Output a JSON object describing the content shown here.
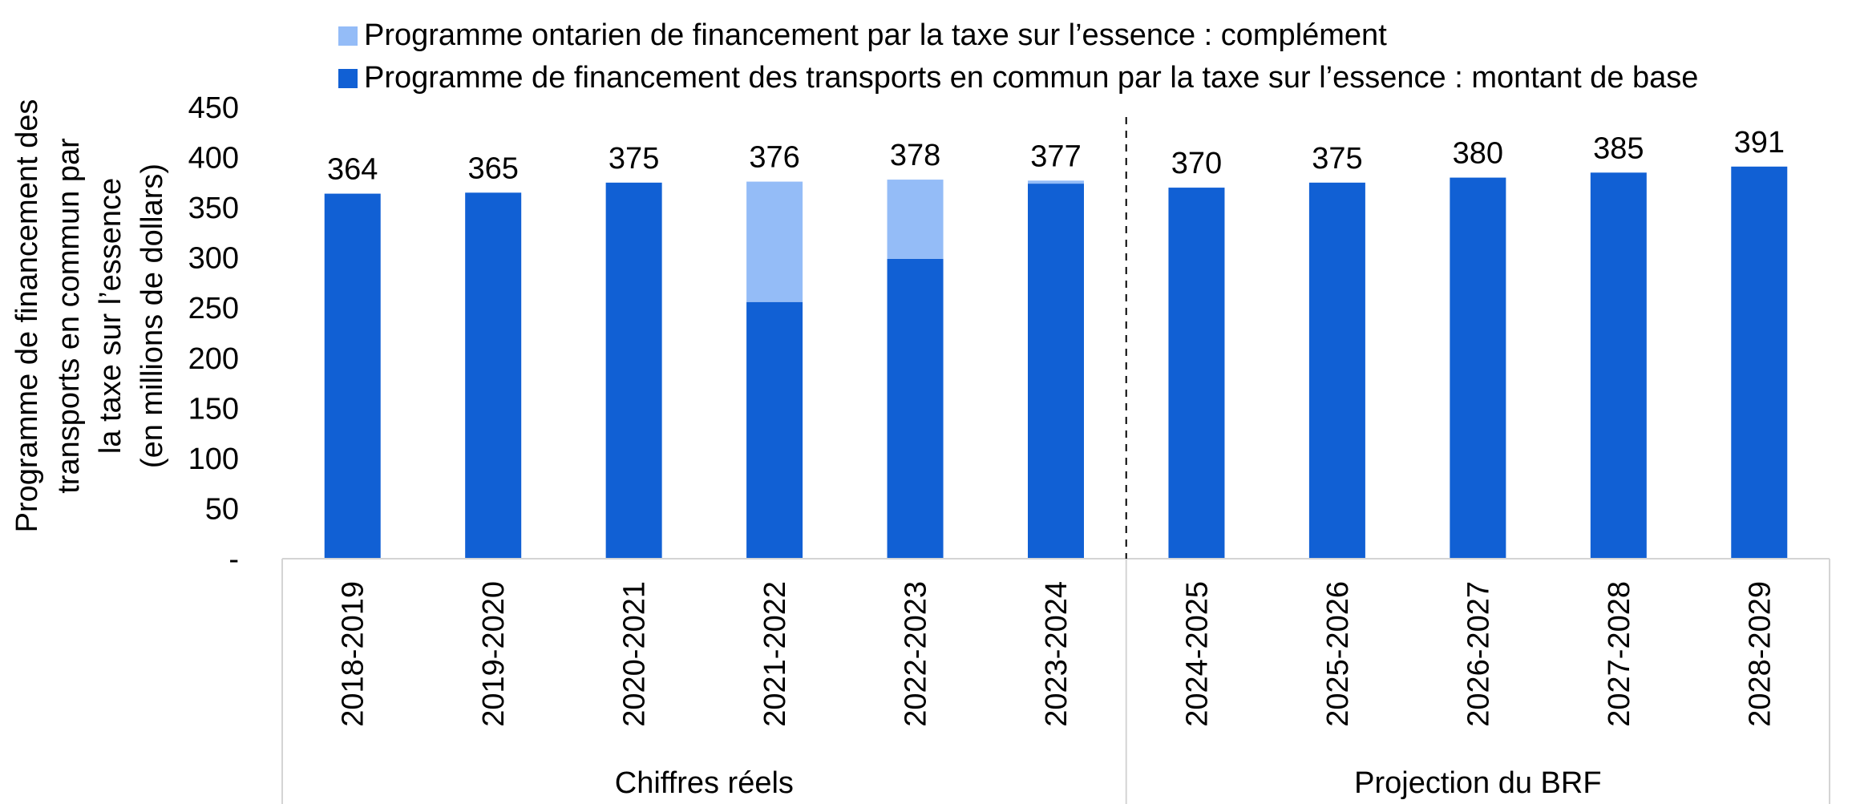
{
  "chart_data": {
    "type": "bar",
    "stacked": true,
    "ylabel_lines": [
      "Programme de financement des",
      "transports en commun par",
      "la taxe sur l’essence",
      "(en millions de dollars)"
    ],
    "ylim": [
      0,
      450
    ],
    "yticks": [
      {
        "value": 0,
        "label": "-"
      },
      {
        "value": 50,
        "label": "50"
      },
      {
        "value": 100,
        "label": "100"
      },
      {
        "value": 150,
        "label": "150"
      },
      {
        "value": 200,
        "label": "200"
      },
      {
        "value": 250,
        "label": "250"
      },
      {
        "value": 300,
        "label": "300"
      },
      {
        "value": 350,
        "label": "350"
      },
      {
        "value": 400,
        "label": "400"
      },
      {
        "value": 450,
        "label": "450"
      }
    ],
    "categories": [
      "2018-2019",
      "2019-2020",
      "2020-2021",
      "2021-2022",
      "2022-2023",
      "2023-2024",
      "2024-2025",
      "2025-2026",
      "2026-2027",
      "2027-2028",
      "2028-2029"
    ],
    "groups": [
      {
        "label": "Chiffres réels",
        "start": 0,
        "end": 5
      },
      {
        "label": "Projection du BRF",
        "start": 6,
        "end": 10
      }
    ],
    "series": [
      {
        "name": "Programme de financement des transports en commun par la taxe sur l’essence : montant de base",
        "color": "#1160d4",
        "values": [
          364,
          365,
          375,
          256,
          299,
          374,
          370,
          375,
          380,
          385,
          391
        ]
      },
      {
        "name": "Programme ontarien de financement par la taxe sur l’essence : complément",
        "color": "#94bcf7",
        "values": [
          0,
          0,
          0,
          120,
          79,
          3,
          0,
          0,
          0,
          0,
          0
        ]
      }
    ],
    "totals": [
      "364",
      "365",
      "375",
      "376",
      "378",
      "377",
      "370",
      "375",
      "380",
      "385",
      "391"
    ],
    "legend": [
      {
        "label": "Programme ontarien de financement par la taxe sur l’essence : complément",
        "color": "#94bcf7"
      },
      {
        "label": "Programme de financement des transports en commun par la taxe sur l’essence : montant de base",
        "color": "#1160d4"
      }
    ],
    "divider_after_index": 5,
    "grid": false,
    "legend_position": "top"
  }
}
